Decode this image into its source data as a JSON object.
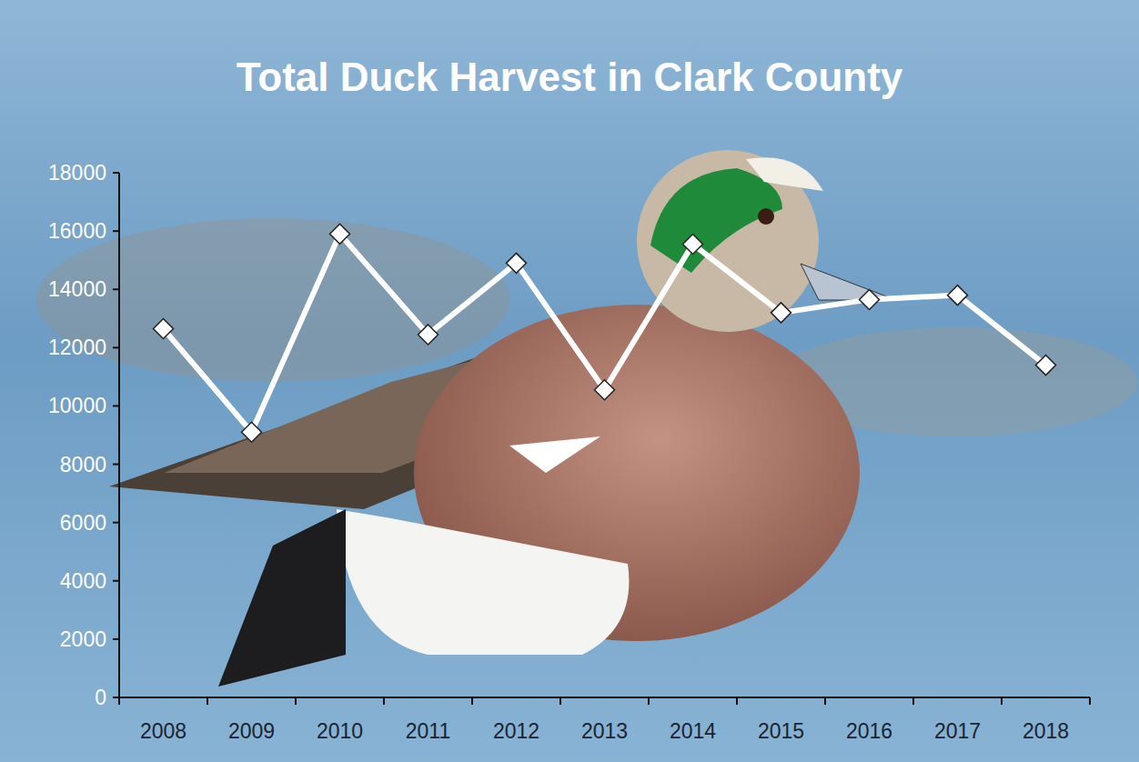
{
  "chart_data": {
    "type": "line",
    "title": "Total Duck Harvest in Clark County",
    "categories": [
      "2008",
      "2009",
      "2010",
      "2011",
      "2012",
      "2013",
      "2014",
      "2015",
      "2016",
      "2017",
      "2018"
    ],
    "values": [
      12650,
      9100,
      15900,
      12450,
      14900,
      10550,
      15550,
      13200,
      13650,
      13800,
      11400
    ],
    "color": "#ffffff",
    "marker": "diamond",
    "ylim": [
      0,
      18000
    ],
    "yticks": [
      0,
      2000,
      4000,
      6000,
      8000,
      10000,
      12000,
      14000,
      16000,
      18000
    ],
    "grid": false
  }
}
